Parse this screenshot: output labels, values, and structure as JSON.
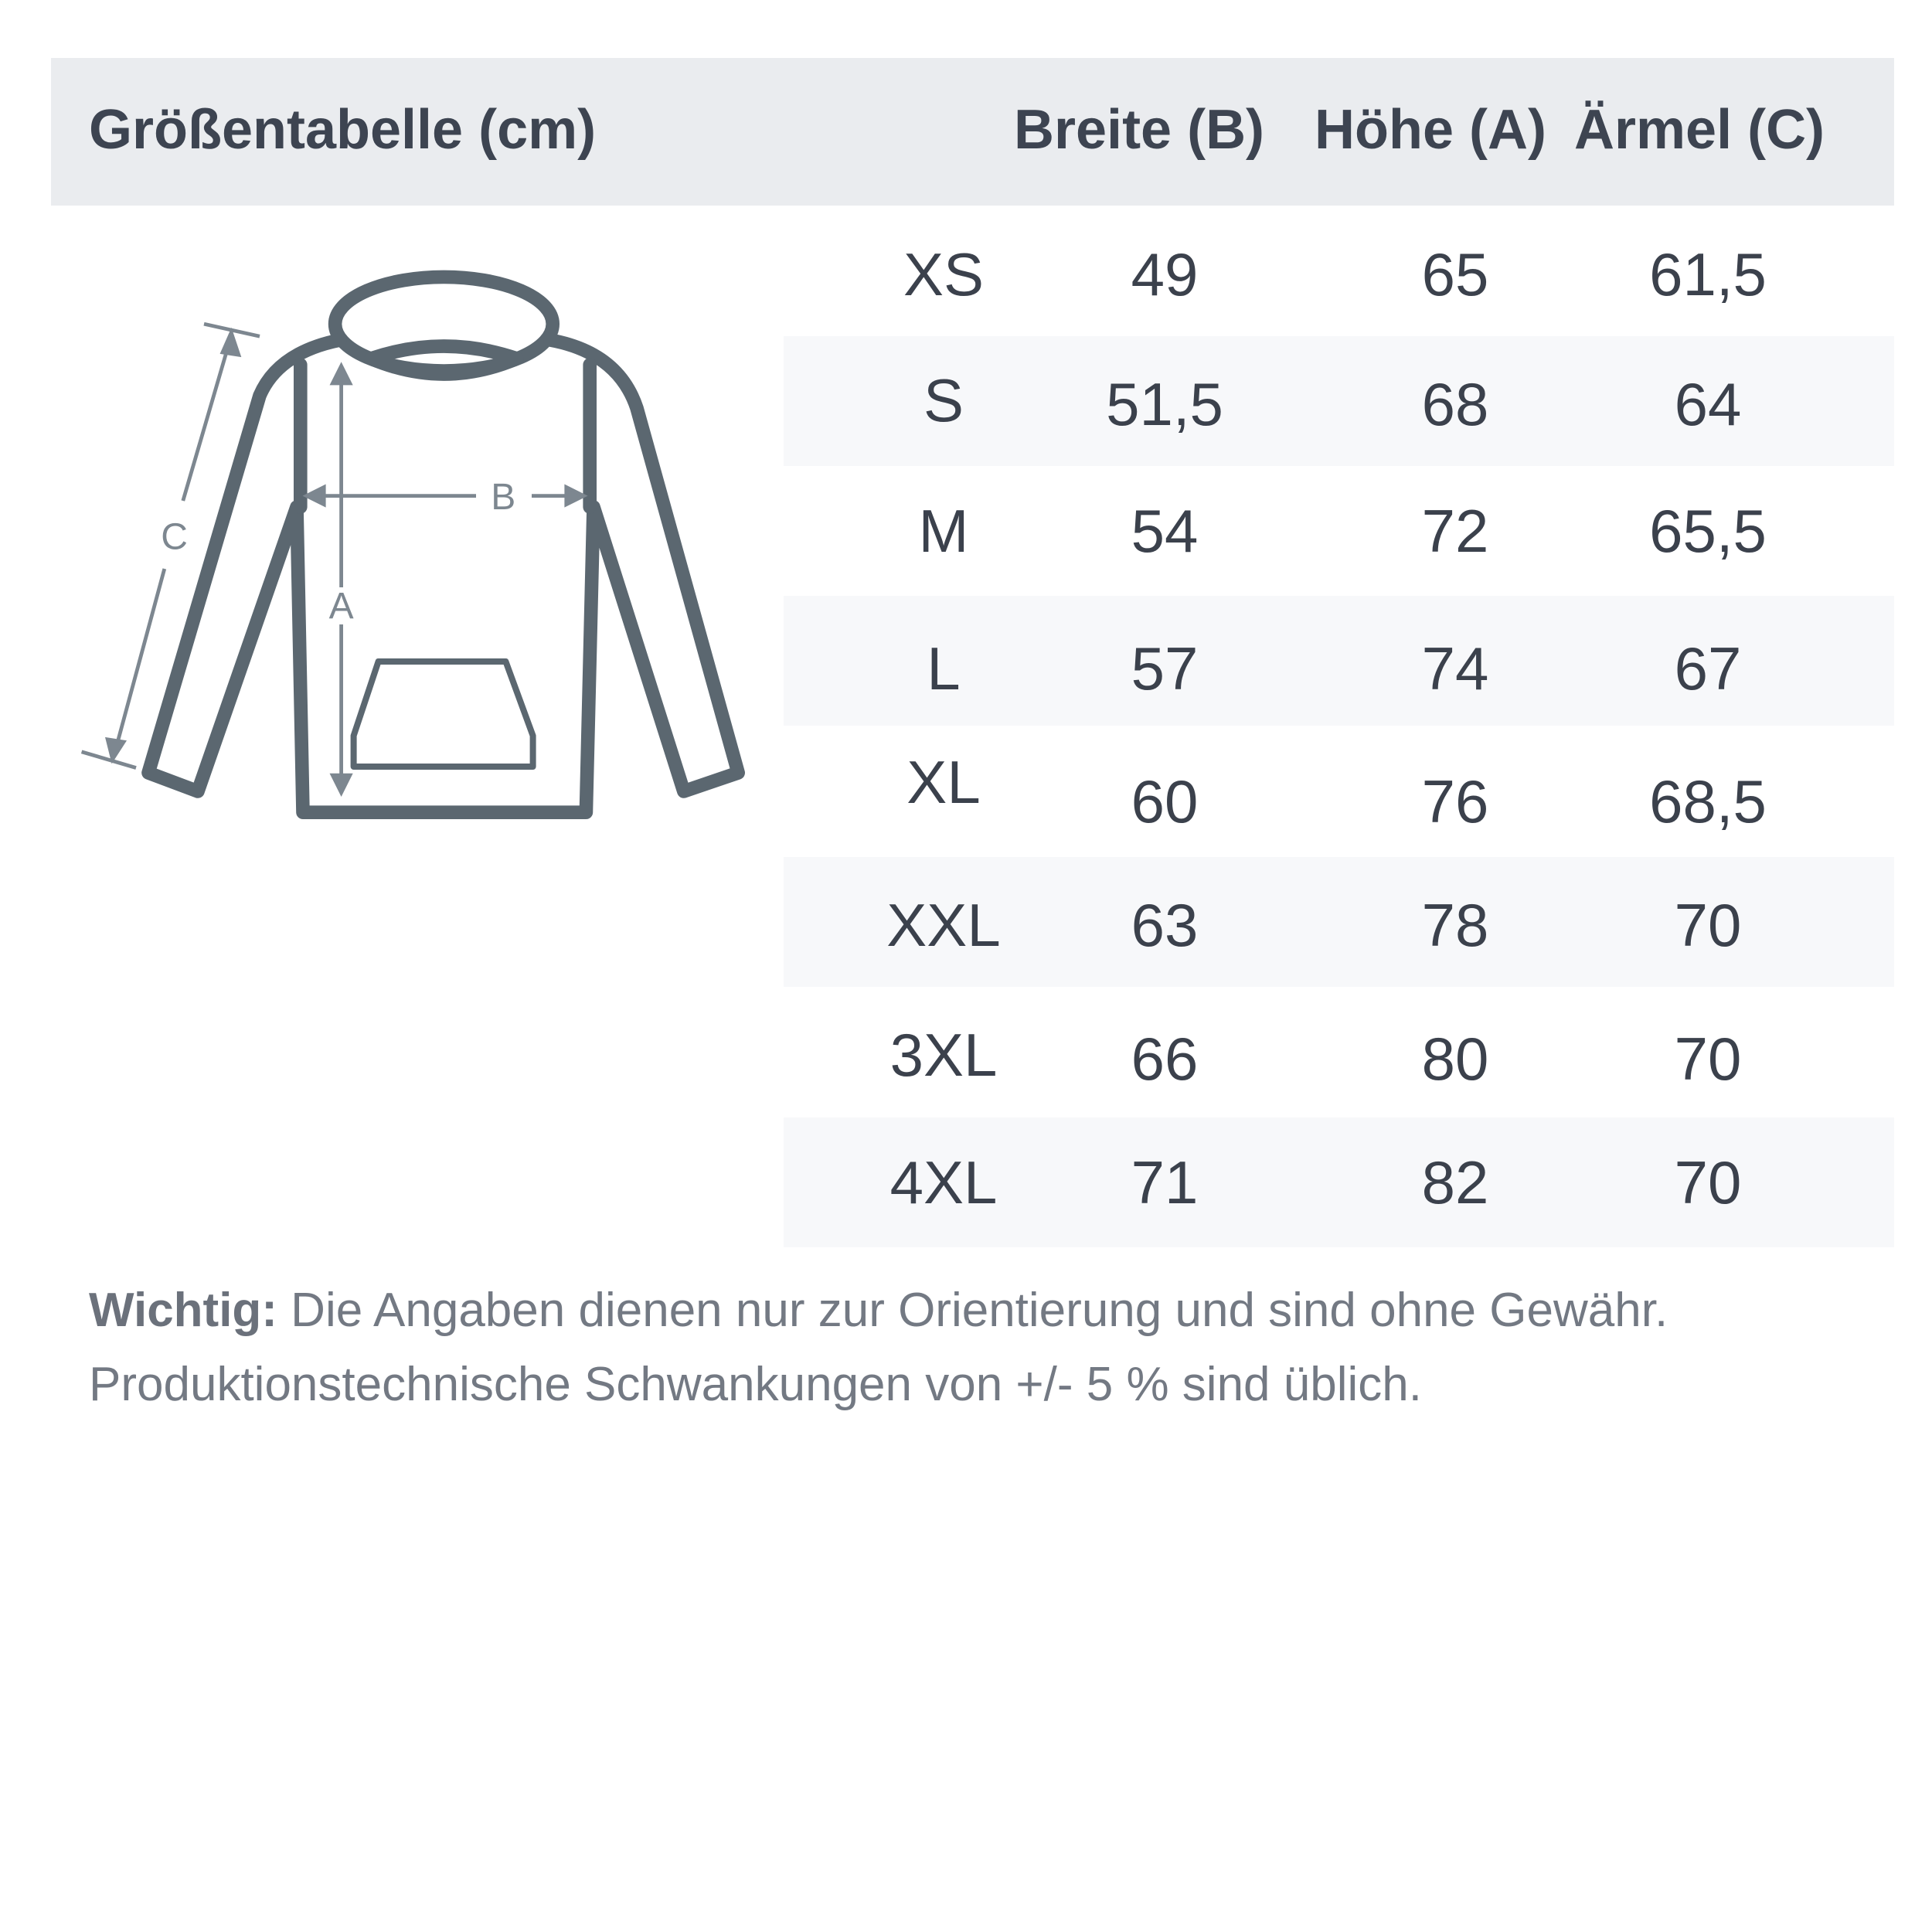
{
  "header": {
    "title": "Größentabelle (cm)",
    "columns": [
      "Breite (B)",
      "Höhe (A)",
      "Ärmel (C)"
    ]
  },
  "diagram": {
    "labels": {
      "width": "B",
      "height": "A",
      "sleeve": "C"
    }
  },
  "rows": [
    {
      "size": "XS",
      "b": "49",
      "a": "65",
      "c": "61,5"
    },
    {
      "size": "S",
      "b": "51,5",
      "a": "68",
      "c": "64"
    },
    {
      "size": "M",
      "b": "54",
      "a": "72",
      "c": "65,5"
    },
    {
      "size": "L",
      "b": "57",
      "a": "74",
      "c": "67"
    },
    {
      "size": "XL",
      "b": "60",
      "a": "76",
      "c": "68,5"
    },
    {
      "size": "XXL",
      "b": "63",
      "a": "78",
      "c": "70"
    },
    {
      "size": "3XL",
      "b": "66",
      "a": "80",
      "c": "70"
    },
    {
      "size": "4XL",
      "b": "71",
      "a": "82",
      "c": "70"
    }
  ],
  "note": {
    "label": "Wichtig:",
    "line1": " Die Angaben dienen nur zur Orientierung und sind ohne Gewähr.",
    "line2": "Produktionstechnische Schwankungen von +/- 5 % sind üblich."
  },
  "colors": {
    "header_bg": "#eaecef",
    "stripe_bg": "#f7f8fa",
    "hoodie": "#5b6770",
    "arrows": "#7d8790"
  }
}
